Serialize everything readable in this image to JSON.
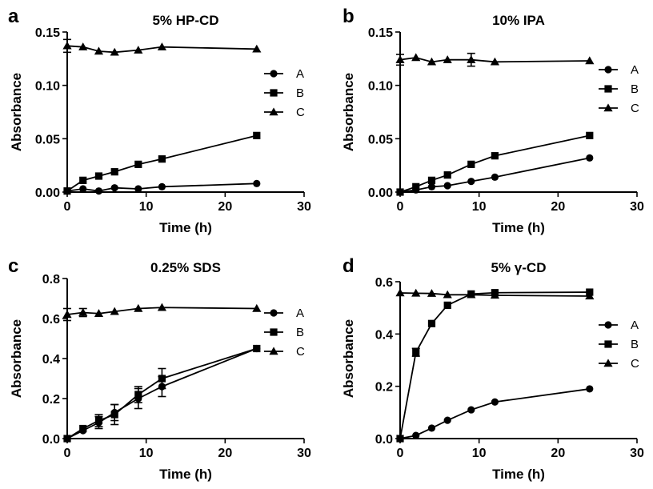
{
  "chart_data": [
    {
      "type": "line",
      "panel": "a",
      "title": "5% HP-CD",
      "xlabel": "Time (h)",
      "ylabel": "Absorbance",
      "xlim": [
        0,
        30
      ],
      "ylim": [
        0,
        0.15
      ],
      "xticks": [
        0,
        10,
        20,
        30
      ],
      "yticks": [
        0,
        0.05,
        0.1,
        0.15
      ],
      "xtick_labels": [
        "0",
        "10",
        "20",
        "30"
      ],
      "ytick_labels": [
        "0.00",
        "0.05",
        "0.10",
        "0.15"
      ],
      "x": [
        0,
        2,
        4,
        6,
        9,
        12,
        24
      ],
      "legend_position": "right",
      "series": [
        {
          "name": "A",
          "marker": "circle",
          "values": [
            0.001,
            0.003,
            0.001,
            0.004,
            0.003,
            0.005,
            0.008
          ]
        },
        {
          "name": "B",
          "marker": "square",
          "values": [
            0.001,
            0.011,
            0.015,
            0.019,
            0.026,
            0.031,
            0.053
          ]
        },
        {
          "name": "C",
          "marker": "triangle",
          "values": [
            0.137,
            0.136,
            0.132,
            0.131,
            0.133,
            0.136,
            0.134
          ],
          "errors": [
            0.006,
            0,
            0,
            0,
            0,
            0,
            0
          ]
        }
      ]
    },
    {
      "type": "line",
      "panel": "b",
      "title": "10% IPA",
      "xlabel": "Time (h)",
      "ylabel": "Absorbance",
      "xlim": [
        0,
        30
      ],
      "ylim": [
        0,
        0.15
      ],
      "xticks": [
        0,
        10,
        20,
        30
      ],
      "yticks": [
        0,
        0.05,
        0.1,
        0.15
      ],
      "xtick_labels": [
        "0",
        "10",
        "20",
        "30"
      ],
      "ytick_labels": [
        "0.00",
        "0.05",
        "0.10",
        "0.15"
      ],
      "x": [
        0,
        2,
        4,
        6,
        9,
        12,
        24
      ],
      "legend_position": "right",
      "series": [
        {
          "name": "A",
          "marker": "circle",
          "values": [
            0.0,
            0.002,
            0.005,
            0.006,
            0.01,
            0.014,
            0.032
          ]
        },
        {
          "name": "B",
          "marker": "square",
          "values": [
            0.0,
            0.005,
            0.011,
            0.016,
            0.026,
            0.034,
            0.053
          ]
        },
        {
          "name": "C",
          "marker": "triangle",
          "values": [
            0.124,
            0.126,
            0.122,
            0.124,
            0.124,
            0.122,
            0.123
          ],
          "errors": [
            0.005,
            0,
            0,
            0,
            0.006,
            0,
            0
          ]
        }
      ]
    },
    {
      "type": "line",
      "panel": "c",
      "title": "0.25% SDS",
      "xlabel": "Time (h)",
      "ylabel": "Absorbance",
      "xlim": [
        0,
        30
      ],
      "ylim": [
        0,
        0.8
      ],
      "xticks": [
        0,
        10,
        20,
        30
      ],
      "yticks": [
        0,
        0.2,
        0.4,
        0.6,
        0.8
      ],
      "xtick_labels": [
        "0",
        "10",
        "20",
        "30"
      ],
      "ytick_labels": [
        "0.0",
        "0.2",
        "0.4",
        "0.6",
        "0.8"
      ],
      "x": [
        0,
        2,
        4,
        6,
        9,
        12,
        24
      ],
      "legend_position": "right",
      "series": [
        {
          "name": "A",
          "marker": "circle",
          "values": [
            0.0,
            0.04,
            0.08,
            0.13,
            0.2,
            0.26,
            0.45
          ],
          "errors": [
            0,
            0,
            0.03,
            0.04,
            0.05,
            0.05,
            0
          ]
        },
        {
          "name": "B",
          "marker": "square",
          "values": [
            0.0,
            0.05,
            0.09,
            0.12,
            0.22,
            0.3,
            0.45
          ],
          "errors": [
            0,
            0,
            0.03,
            0.05,
            0.04,
            0.05,
            0
          ]
        },
        {
          "name": "C",
          "marker": "triangle",
          "values": [
            0.62,
            0.63,
            0.625,
            0.635,
            0.65,
            0.655,
            0.65
          ],
          "errors": [
            0.03,
            0.02,
            0,
            0,
            0,
            0,
            0
          ]
        }
      ]
    },
    {
      "type": "line",
      "panel": "d",
      "title": "5% γ-CD",
      "xlabel": "Time (h)",
      "ylabel": "Absorbance",
      "xlim": [
        0,
        30
      ],
      "ylim": [
        0,
        0.6
      ],
      "xticks": [
        0,
        10,
        20,
        30
      ],
      "yticks": [
        0,
        0.2,
        0.4,
        0.6
      ],
      "xtick_labels": [
        "0",
        "10",
        "20",
        "30"
      ],
      "ytick_labels": [
        "0.0",
        "0.2",
        "0.4",
        "0.6"
      ],
      "x": [
        0,
        2,
        4,
        6,
        9,
        12,
        24
      ],
      "legend_position": "right",
      "series": [
        {
          "name": "A",
          "marker": "circle",
          "values": [
            0.0,
            0.012,
            0.04,
            0.07,
            0.11,
            0.14,
            0.19
          ]
        },
        {
          "name": "B",
          "marker": "square",
          "values": [
            0.0,
            0.33,
            0.44,
            0.51,
            0.553,
            0.558,
            0.56
          ],
          "errors": [
            0,
            0.015,
            0,
            0,
            0,
            0,
            0
          ]
        },
        {
          "name": "C",
          "marker": "triangle",
          "values": [
            0.557,
            0.556,
            0.555,
            0.55,
            0.55,
            0.548,
            0.545
          ]
        }
      ]
    }
  ]
}
